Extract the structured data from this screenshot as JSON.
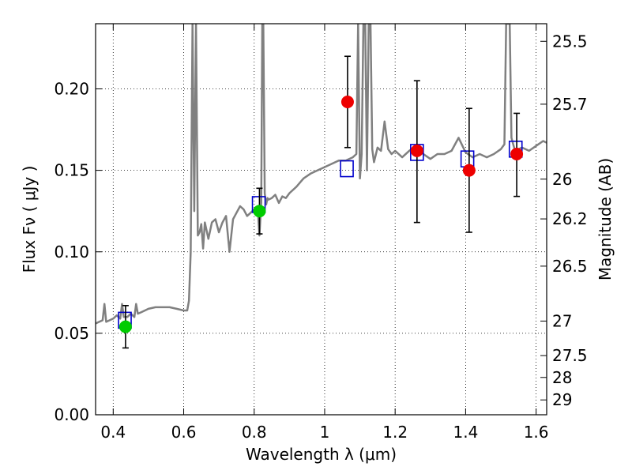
{
  "chart_data": {
    "type": "line",
    "xlabel": "Wavelength  λ (μm)",
    "ylabel": "Flux  Fν  ( μJy )",
    "ylabel_right": "Magnitude (AB)",
    "xlim": [
      0.35,
      1.63
    ],
    "ylim": [
      0.0,
      0.24
    ],
    "grid": true,
    "x_ticks": [
      0.4,
      0.6,
      0.8,
      1.0,
      1.2,
      1.4,
      1.6
    ],
    "x_tick_labels": [
      "0.4",
      "0.6",
      "0.8",
      "1",
      "1.2",
      "1.4",
      "1.6"
    ],
    "y_ticks": [
      0.0,
      0.05,
      0.1,
      0.15,
      0.2
    ],
    "y_tick_labels": [
      "0.00",
      "0.05",
      "0.10",
      "0.15",
      "0.20"
    ],
    "right_ticks": [
      {
        "label": "25.5",
        "flux": 0.2292
      },
      {
        "label": "25.7",
        "flux": 0.1906
      },
      {
        "label": "26",
        "flux": 0.1446
      },
      {
        "label": "26.2",
        "flux": 0.1202
      },
      {
        "label": "26.5",
        "flux": 0.0912
      },
      {
        "label": "27",
        "flux": 0.0575
      },
      {
        "label": "27.5",
        "flux": 0.0363
      },
      {
        "label": "28",
        "flux": 0.0229
      },
      {
        "label": "29",
        "flux": 0.0091
      }
    ],
    "series": [
      {
        "style": "model-spectrum",
        "color": "#808080",
        "x": [
          0.35,
          0.36,
          0.37,
          0.375,
          0.38,
          0.39,
          0.4,
          0.41,
          0.42,
          0.425,
          0.43,
          0.44,
          0.45,
          0.46,
          0.465,
          0.47,
          0.48,
          0.49,
          0.5,
          0.52,
          0.54,
          0.56,
          0.58,
          0.6,
          0.61,
          0.615,
          0.62,
          0.625,
          0.63,
          0.635,
          0.64,
          0.645,
          0.65,
          0.655,
          0.66,
          0.67,
          0.68,
          0.69,
          0.7,
          0.71,
          0.72,
          0.73,
          0.74,
          0.75,
          0.76,
          0.77,
          0.78,
          0.79,
          0.8,
          0.805,
          0.81,
          0.815,
          0.82,
          0.823,
          0.826,
          0.83,
          0.834,
          0.838,
          0.84,
          0.85,
          0.86,
          0.87,
          0.88,
          0.89,
          0.9,
          0.92,
          0.94,
          0.96,
          0.98,
          1.0,
          1.02,
          1.04,
          1.06,
          1.08,
          1.09,
          1.095,
          1.1,
          1.105,
          1.11,
          1.115,
          1.12,
          1.125,
          1.13,
          1.135,
          1.14,
          1.15,
          1.16,
          1.17,
          1.18,
          1.19,
          1.2,
          1.22,
          1.24,
          1.26,
          1.28,
          1.3,
          1.32,
          1.34,
          1.36,
          1.38,
          1.4,
          1.42,
          1.44,
          1.46,
          1.48,
          1.5,
          1.51,
          1.515,
          1.52,
          1.525,
          1.53,
          1.54,
          1.56,
          1.58,
          1.6,
          1.62,
          1.63
        ],
        "y": [
          0.056,
          0.057,
          0.058,
          0.068,
          0.057,
          0.058,
          0.059,
          0.061,
          0.059,
          0.068,
          0.06,
          0.06,
          0.062,
          0.06,
          0.068,
          0.062,
          0.063,
          0.064,
          0.065,
          0.066,
          0.066,
          0.066,
          0.065,
          0.064,
          0.064,
          0.07,
          0.1,
          0.24,
          0.125,
          0.24,
          0.11,
          0.112,
          0.117,
          0.102,
          0.118,
          0.108,
          0.118,
          0.12,
          0.112,
          0.118,
          0.122,
          0.1,
          0.12,
          0.124,
          0.128,
          0.126,
          0.122,
          0.124,
          0.126,
          0.124,
          0.127,
          0.11,
          0.13,
          0.24,
          0.24,
          0.136,
          0.129,
          0.133,
          0.132,
          0.133,
          0.135,
          0.13,
          0.134,
          0.133,
          0.136,
          0.14,
          0.145,
          0.148,
          0.15,
          0.152,
          0.154,
          0.156,
          0.156,
          0.158,
          0.16,
          0.24,
          0.145,
          0.16,
          0.24,
          0.24,
          0.15,
          0.24,
          0.24,
          0.163,
          0.155,
          0.164,
          0.162,
          0.18,
          0.163,
          0.16,
          0.162,
          0.158,
          0.162,
          0.165,
          0.16,
          0.157,
          0.16,
          0.16,
          0.162,
          0.17,
          0.161,
          0.158,
          0.16,
          0.158,
          0.16,
          0.163,
          0.166,
          0.24,
          0.24,
          0.24,
          0.17,
          0.162,
          0.164,
          0.162,
          0.165,
          0.168,
          0.167
        ]
      },
      {
        "style": "observed-detection",
        "color": "#00cc00",
        "x": [
          0.435,
          0.815
        ],
        "y": [
          0.054,
          0.125
        ],
        "yerr_low": [
          0.013,
          0.014
        ],
        "yerr_high": [
          0.013,
          0.014
        ]
      },
      {
        "style": "observed-other",
        "color": "#ee0000",
        "x": [
          1.065,
          1.262,
          1.41,
          1.545
        ],
        "y": [
          0.192,
          0.162,
          0.15,
          0.16
        ],
        "yerr_low": [
          0.028,
          0.044,
          0.038,
          0.026
        ],
        "yerr_high": [
          0.028,
          0.043,
          0.038,
          0.025
        ]
      },
      {
        "style": "model-band-flux",
        "color": "#0000cc",
        "x": [
          0.433,
          0.813,
          1.063,
          1.262,
          1.405,
          1.542
        ],
        "y": [
          0.058,
          0.129,
          0.151,
          0.161,
          0.157,
          0.163
        ]
      }
    ]
  }
}
